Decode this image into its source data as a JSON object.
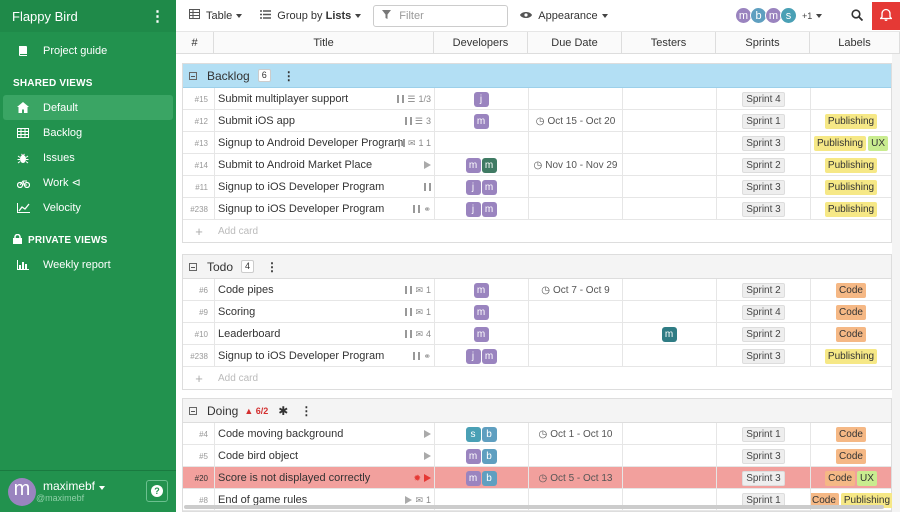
{
  "app": {
    "project": "Flappy Bird"
  },
  "sidebar": {
    "guide": "Project guide",
    "shared_header": "SHARED VIEWS",
    "shared": [
      {
        "label": "Default",
        "icon": "home-icon"
      },
      {
        "label": "Backlog",
        "icon": "table-icon"
      },
      {
        "label": "Issues",
        "icon": "bug-icon"
      },
      {
        "label": "Work ⊲",
        "icon": "bike-icon"
      },
      {
        "label": "Velocity",
        "icon": "chart-icon"
      }
    ],
    "private_header": "PRIVATE VIEWS",
    "private": [
      {
        "label": "Weekly report",
        "icon": "bar-chart-icon"
      }
    ],
    "user": {
      "name": "maximebf",
      "handle": "@maximebf",
      "initial": "m"
    }
  },
  "toolbar": {
    "table": "Table",
    "group_prefix": "Group by ",
    "group_value": "Lists",
    "filter_placeholder": "Filter",
    "appearance": "Appearance",
    "more_members": "+1",
    "members": [
      "m",
      "b",
      "m",
      "s"
    ]
  },
  "columns": [
    "#",
    "Title",
    "Developers",
    "Due Date",
    "Testers",
    "Sprints",
    "Labels"
  ],
  "groups": [
    {
      "name": "Backlog",
      "count": "6",
      "rows": [
        {
          "id": "#15",
          "title": "Submit multiplayer support",
          "meta": "1/3",
          "devs": [
            "j"
          ],
          "due": "",
          "testers": [],
          "sprint": "Sprint 4",
          "labels": []
        },
        {
          "id": "#12",
          "title": "Submit iOS app",
          "meta": "3",
          "devs": [
            "m"
          ],
          "due": "Oct 15 - Oct 20",
          "testers": [],
          "sprint": "Sprint 1",
          "labels": [
            "Publishing"
          ]
        },
        {
          "id": "#13",
          "title": "Signup to Android Developer Program",
          "meta": "1   1",
          "devs": [],
          "due": "",
          "testers": [],
          "sprint": "Sprint 3",
          "labels": [
            "Publishing",
            "UX"
          ]
        },
        {
          "id": "#14",
          "title": "Submit to Android Market Place",
          "meta": "",
          "devs": [
            "m",
            "m"
          ],
          "due": "Nov 10 - Nov 29",
          "testers": [],
          "sprint": "Sprint 2",
          "labels": [
            "Publishing"
          ]
        },
        {
          "id": "#11",
          "title": "Signup to iOS Developer Program",
          "meta": "",
          "devs": [
            "j",
            "m"
          ],
          "due": "",
          "testers": [],
          "sprint": "Sprint 3",
          "labels": [
            "Publishing"
          ]
        },
        {
          "id": "#238",
          "title": "Signup to iOS Developer Program",
          "meta": "",
          "devs": [
            "j",
            "m"
          ],
          "due": "",
          "testers": [],
          "sprint": "Sprint 3",
          "labels": [
            "Publishing"
          ]
        }
      ]
    },
    {
      "name": "Todo",
      "count": "4",
      "rows": [
        {
          "id": "#6",
          "title": "Code pipes",
          "meta": "1",
          "devs": [
            "m"
          ],
          "due": "Oct 7 - Oct 9",
          "testers": [],
          "sprint": "Sprint 2",
          "labels": [
            "Code"
          ]
        },
        {
          "id": "#9",
          "title": "Scoring",
          "meta": "1",
          "devs": [
            "m"
          ],
          "due": "",
          "testers": [],
          "sprint": "Sprint 4",
          "labels": [
            "Code"
          ]
        },
        {
          "id": "#10",
          "title": "Leaderboard",
          "meta": "4",
          "devs": [
            "m"
          ],
          "due": "",
          "testers": [
            "m"
          ],
          "sprint": "Sprint 2",
          "labels": [
            "Code"
          ]
        },
        {
          "id": "#238",
          "title": "Signup to iOS Developer Program",
          "meta": "",
          "devs": [
            "j",
            "m"
          ],
          "due": "",
          "testers": [],
          "sprint": "Sprint 3",
          "labels": [
            "Publishing"
          ]
        }
      ]
    },
    {
      "name": "Doing",
      "count": "6/2",
      "rows": [
        {
          "id": "#4",
          "title": "Code moving background",
          "meta": "",
          "devs": [
            "s",
            "b"
          ],
          "due": "Oct 1 - Oct 10",
          "testers": [],
          "sprint": "Sprint 1",
          "labels": [
            "Code"
          ]
        },
        {
          "id": "#5",
          "title": "Code bird object",
          "meta": "",
          "devs": [
            "m",
            "b"
          ],
          "due": "",
          "testers": [],
          "sprint": "Sprint 3",
          "labels": [
            "Code"
          ]
        },
        {
          "id": "#20",
          "title": "Score is not displayed correctly",
          "meta": "",
          "devs": [
            "m",
            "b"
          ],
          "due": "Oct 5 - Oct 13",
          "testers": [],
          "sprint": "Sprint 3",
          "labels": [
            "Code",
            "UX"
          ]
        },
        {
          "id": "#8",
          "title": "End of game rules",
          "meta": "1",
          "devs": [],
          "due": "",
          "testers": [],
          "sprint": "Sprint 1",
          "labels": [
            "Code",
            "Publishing"
          ]
        }
      ]
    }
  ],
  "add_card": "Add card"
}
